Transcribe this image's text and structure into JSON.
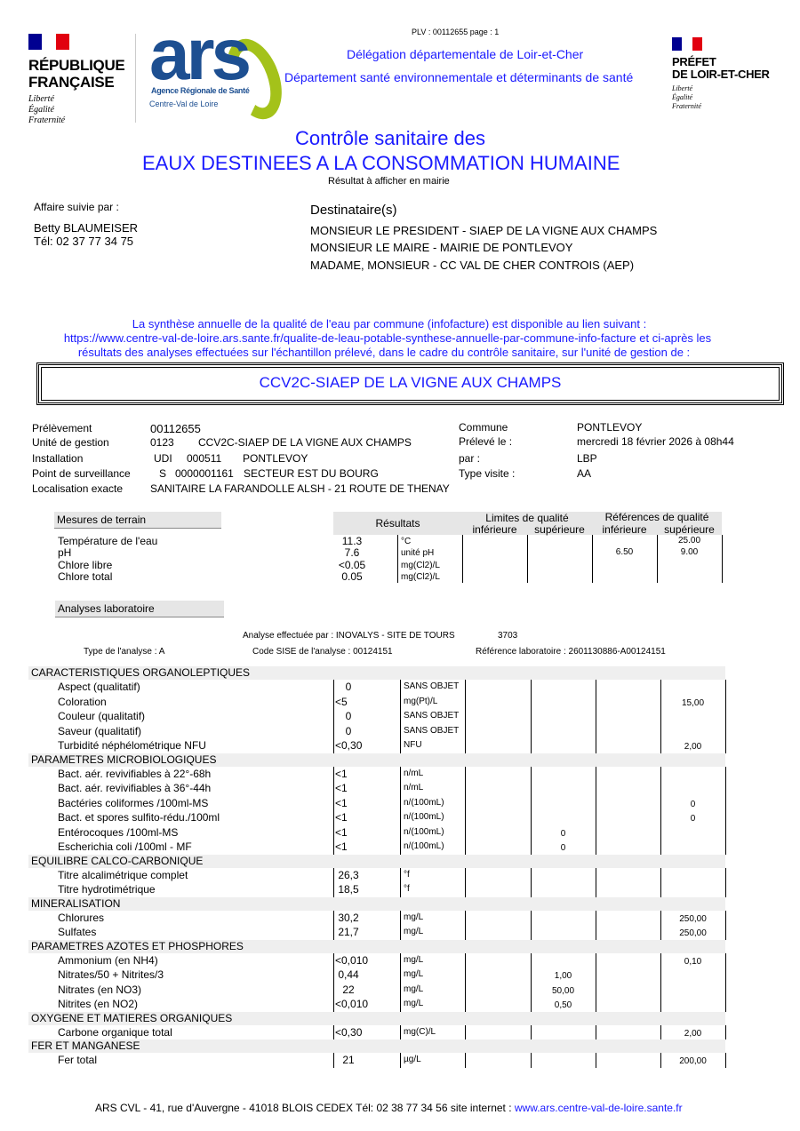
{
  "header": {
    "plv": "PLV : 00112655   page : 1",
    "rf_lines": [
      "RÉPUBLIQUE",
      "FRANÇAISE"
    ],
    "rf_devise": [
      "Liberté",
      "Égalité",
      "Fraternité"
    ],
    "ars_logo": "ars",
    "ars_sub": [
      "Agence Régionale de Santé",
      "Centre-Val de Loire"
    ],
    "delegation": "Délégation départementale de Loir-et-Cher",
    "departement": "Département santé environnementale et déterminants de santé",
    "prefet_lines": [
      "PRÉFET",
      "DE LOIR-ET-CHER"
    ],
    "prefet_devise": [
      "Liberté",
      "Égalité",
      "Fraternité"
    ],
    "colors": {
      "blue": "#1a1aff",
      "ars_blue": "#1d4f91",
      "ars_green": "#a4c21a",
      "flag_blue": "#000091",
      "flag_red": "#e1000f"
    }
  },
  "title": {
    "line1": "Contrôle sanitaire des",
    "line2": "EAUX DESTINEES A LA CONSOMMATION HUMAINE",
    "sub": "Résultat à afficher en mairie"
  },
  "contact": {
    "label": "Affaire suivie par  :",
    "name": "Betty BLAUMEISER",
    "tel": "Tél: 02 37 77 34 75"
  },
  "recipients": {
    "label": "Destinataire(s)",
    "lines": [
      "MONSIEUR LE PRESIDENT - SIAEP DE LA VIGNE AUX CHAMPS",
      "MONSIEUR LE MAIRE - MAIRIE DE PONTLEVOY",
      "MADAME, MONSIEUR - CC VAL DE CHER CONTROIS (AEP)"
    ]
  },
  "synthese": [
    "La synthèse annuelle de la qualité de l'eau par commune (infofacture) est disponible au lien suivant :",
    "https://www.centre-val-de-loire.ars.sante.fr/qualite-de-leau-potable-synthese-annuelle-par-commune-info-facture et ci-après les",
    "résultats des analyses effectuées sur l'échantillon prélevé, dans le cadre du contrôle sanitaire, sur l'unité de gestion de :"
  ],
  "unit_box": "CCV2C-SIAEP DE LA VIGNE AUX CHAMPS",
  "info": {
    "prelevement": {
      "label": "Prélèvement",
      "value": "00112655"
    },
    "unite": {
      "label": "Unité de gestion",
      "code": "0123",
      "name": "CCV2C-SIAEP DE LA VIGNE AUX CHAMPS"
    },
    "installation": {
      "label": "Installation",
      "type": "UDI",
      "code": "000511",
      "name": "PONTLEVOY"
    },
    "point": {
      "label": "Point de surveillance",
      "type": "S",
      "code": "0000001161",
      "name": "SECTEUR EST DU BOURG"
    },
    "localisation": {
      "label": "Localisation exacte",
      "value": "SANITAIRE LA FARANDOLLE ALSH - 21 ROUTE DE THENAY"
    },
    "commune": {
      "label": "Commune",
      "value": "PONTLEVOY"
    },
    "preleve_le": {
      "label": "Prélevé le :",
      "value": "mercredi 18 février 2026 à 08h44"
    },
    "par": {
      "label": "par :",
      "value": "LBP"
    },
    "type_visite": {
      "label": "Type visite :",
      "value": "AA"
    }
  },
  "terrain": {
    "title": "Mesures de terrain",
    "headers": {
      "resultats": "Résultats",
      "limites": "Limites de qualité",
      "references": "Références de qualité",
      "inf": "inférieure",
      "sup": "supérieure"
    },
    "rows": [
      {
        "name": "Température de l'eau",
        "value": "11.3",
        "unit": "°C",
        "lim_inf": "",
        "lim_sup": "",
        "ref_inf": "",
        "ref_sup": "25.00"
      },
      {
        "name": "pH",
        "value": "7.6",
        "unit": "unité pH",
        "lim_inf": "",
        "lim_sup": "",
        "ref_inf": "6.50",
        "ref_sup": "9.00"
      },
      {
        "name": "Chlore libre",
        "value": "<0.05",
        "unit": "mg(Cl2)/L",
        "lim_inf": "",
        "lim_sup": "",
        "ref_inf": "",
        "ref_sup": ""
      },
      {
        "name": "Chlore total",
        "value": "0.05",
        "unit": "mg(Cl2)/L",
        "lim_inf": "",
        "lim_sup": "",
        "ref_inf": "",
        "ref_sup": ""
      }
    ]
  },
  "labo": {
    "title": "Analyses laboratoire",
    "effectuee": "Analyse effectuée par : INOVALYS - SITE DE TOURS",
    "lab_code": "3703",
    "type": "Type de l'analyse : A",
    "code_sise": "Code SISE de l'analyse : 00124151",
    "reference": "Référence laboratoire : 2601130886-A00124151",
    "sections": [
      {
        "title": "CARACTERISTIQUES ORGANOLEPTIQUES",
        "rows": [
          {
            "name": "Aspect (qualitatif)",
            "value": "0",
            "unit": "SANS OBJET",
            "lim_inf": "",
            "lim_sup": "",
            "ref_inf": "",
            "ref_sup": ""
          },
          {
            "name": "Coloration",
            "value": "<5",
            "unit": "mg(Pt)/L",
            "lim_inf": "",
            "lim_sup": "",
            "ref_inf": "",
            "ref_sup": "15,00"
          },
          {
            "name": "Couleur (qualitatif)",
            "value": "0",
            "unit": "SANS OBJET",
            "lim_inf": "",
            "lim_sup": "",
            "ref_inf": "",
            "ref_sup": ""
          },
          {
            "name": "Saveur (qualitatif)",
            "value": "0",
            "unit": "SANS OBJET",
            "lim_inf": "",
            "lim_sup": "",
            "ref_inf": "",
            "ref_sup": ""
          },
          {
            "name": "Turbidité néphélométrique NFU",
            "value": "<0,30",
            "unit": "NFU",
            "lim_inf": "",
            "lim_sup": "",
            "ref_inf": "",
            "ref_sup": "2,00"
          }
        ]
      },
      {
        "title": "PARAMETRES MICROBIOLOGIQUES",
        "rows": [
          {
            "name": "Bact. aér. revivifiables à 22°-68h",
            "value": "<1",
            "unit": "n/mL",
            "lim_inf": "",
            "lim_sup": "",
            "ref_inf": "",
            "ref_sup": ""
          },
          {
            "name": "Bact. aér. revivifiables à 36°-44h",
            "value": "<1",
            "unit": "n/mL",
            "lim_inf": "",
            "lim_sup": "",
            "ref_inf": "",
            "ref_sup": ""
          },
          {
            "name": "Bactéries coliformes /100ml-MS",
            "value": "<1",
            "unit": "n/(100mL)",
            "lim_inf": "",
            "lim_sup": "",
            "ref_inf": "",
            "ref_sup": "0"
          },
          {
            "name": "Bact. et spores sulfito-rédu./100ml",
            "value": "<1",
            "unit": "n/(100mL)",
            "lim_inf": "",
            "lim_sup": "",
            "ref_inf": "",
            "ref_sup": "0"
          },
          {
            "name": "Entérocoques /100ml-MS",
            "value": "<1",
            "unit": "n/(100mL)",
            "lim_inf": "",
            "lim_sup": "0",
            "ref_inf": "",
            "ref_sup": ""
          },
          {
            "name": "Escherichia coli /100ml - MF",
            "value": "<1",
            "unit": "n/(100mL)",
            "lim_inf": "",
            "lim_sup": "0",
            "ref_inf": "",
            "ref_sup": ""
          }
        ]
      },
      {
        "title": "EQUILIBRE CALCO-CARBONIQUE",
        "rows": [
          {
            "name": "Titre alcalimétrique complet",
            "value": "26,3",
            "unit": "°f",
            "lim_inf": "",
            "lim_sup": "",
            "ref_inf": "",
            "ref_sup": ""
          },
          {
            "name": "Titre hydrotimétrique",
            "value": "18,5",
            "unit": "°f",
            "lim_inf": "",
            "lim_sup": "",
            "ref_inf": "",
            "ref_sup": ""
          }
        ]
      },
      {
        "title": "MINERALISATION",
        "rows": [
          {
            "name": "Chlorures",
            "value": "30,2",
            "unit": "mg/L",
            "lim_inf": "",
            "lim_sup": "",
            "ref_inf": "",
            "ref_sup": "250,00"
          },
          {
            "name": "Sulfates",
            "value": "21,7",
            "unit": "mg/L",
            "lim_inf": "",
            "lim_sup": "",
            "ref_inf": "",
            "ref_sup": "250,00"
          }
        ]
      },
      {
        "title": "PARAMETRES AZOTES ET PHOSPHORES",
        "rows": [
          {
            "name": "Ammonium (en NH4)",
            "value": "<0,010",
            "unit": "mg/L",
            "lim_inf": "",
            "lim_sup": "",
            "ref_inf": "",
            "ref_sup": "0,10"
          },
          {
            "name": "Nitrates/50 + Nitrites/3",
            "value": "0,44",
            "unit": "mg/L",
            "lim_inf": "",
            "lim_sup": "1,00",
            "ref_inf": "",
            "ref_sup": ""
          },
          {
            "name": "Nitrates (en NO3)",
            "value": "22",
            "unit": "mg/L",
            "lim_inf": "",
            "lim_sup": "50,00",
            "ref_inf": "",
            "ref_sup": ""
          },
          {
            "name": "Nitrites (en NO2)",
            "value": "<0,010",
            "unit": "mg/L",
            "lim_inf": "",
            "lim_sup": "0,50",
            "ref_inf": "",
            "ref_sup": ""
          }
        ]
      },
      {
        "title": "OXYGENE ET MATIERES ORGANIQUES",
        "rows": [
          {
            "name": "Carbone organique total",
            "value": "<0,30",
            "unit": "mg(C)/L",
            "lim_inf": "",
            "lim_sup": "",
            "ref_inf": "",
            "ref_sup": "2,00"
          }
        ]
      },
      {
        "title": "FER ET MANGANESE",
        "rows": [
          {
            "name": "Fer total",
            "value": "21",
            "unit": "µg/L",
            "lim_inf": "",
            "lim_sup": "",
            "ref_inf": "",
            "ref_sup": "200,00"
          }
        ]
      }
    ]
  },
  "footer": {
    "address": "ARS CVL - 41, rue d'Auvergne - 41018  BLOIS CEDEX  Tél: 02 38 77 34 56     site internet : ",
    "site": "www.ars.centre-val-de-loire.sante.fr"
  }
}
